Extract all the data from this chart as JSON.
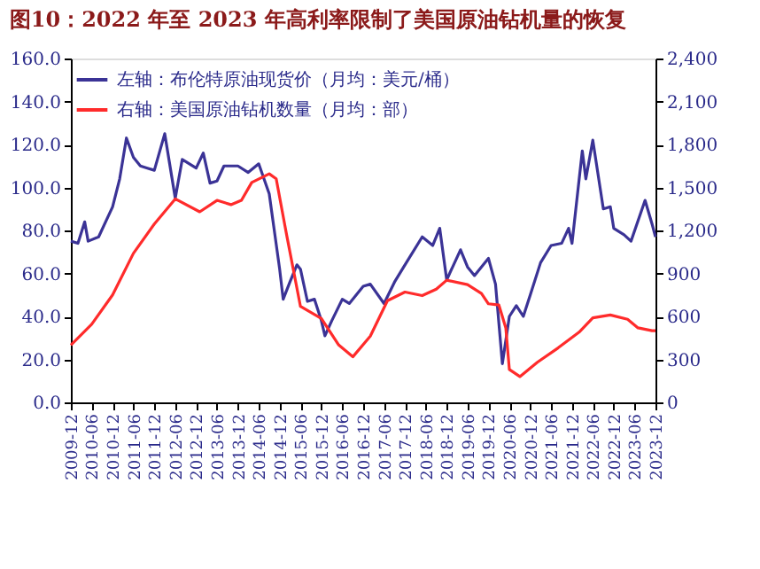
{
  "chart_data": {
    "type": "line",
    "title": "图10：2022 年至 2023 年高利率限制了美国原油钻机量的恢复",
    "series": [
      {
        "name": "左轴：布伦特原油现货价（月均：美元/桶）",
        "color": "#3b3396",
        "axis": "y",
        "x": [
          "2009-12",
          "2010-02",
          "2010-04",
          "2010-05",
          "2010-08",
          "2010-12",
          "2011-02",
          "2011-04",
          "2011-06",
          "2011-08",
          "2011-10",
          "2011-12",
          "2012-03",
          "2012-06",
          "2012-08",
          "2012-12",
          "2013-02",
          "2013-04",
          "2013-06",
          "2013-08",
          "2013-12",
          "2014-03",
          "2014-06",
          "2014-09",
          "2014-12",
          "2015-01",
          "2015-03",
          "2015-05",
          "2015-06",
          "2015-08",
          "2015-10",
          "2015-12",
          "2016-01",
          "2016-03",
          "2016-06",
          "2016-08",
          "2016-12",
          "2017-02",
          "2017-06",
          "2017-09",
          "2017-12",
          "2018-05",
          "2018-08",
          "2018-10",
          "2018-12",
          "2019-04",
          "2019-06",
          "2019-08",
          "2019-12",
          "2020-02",
          "2020-04",
          "2020-06",
          "2020-08",
          "2020-10",
          "2020-12",
          "2021-03",
          "2021-06",
          "2021-09",
          "2021-11",
          "2021-12",
          "2022-03",
          "2022-04",
          "2022-06",
          "2022-09",
          "2022-11",
          "2022-12",
          "2023-03",
          "2023-05",
          "2023-09",
          "2023-11",
          "2023-12"
        ],
        "values": [
          75,
          74,
          84,
          75,
          77,
          91,
          104,
          123,
          114,
          110,
          109,
          108,
          125,
          95,
          113,
          109,
          116,
          102,
          103,
          110,
          110,
          107,
          111,
          97,
          62,
          48,
          56,
          64,
          62,
          47,
          48,
          38,
          31,
          38,
          48,
          46,
          54,
          55,
          46,
          56,
          64,
          77,
          73,
          81,
          57,
          71,
          63,
          59,
          67,
          55,
          18,
          40,
          45,
          40,
          50,
          65,
          73,
          74,
          81,
          74,
          117,
          104,
          122,
          90,
          91,
          81,
          78,
          75,
          94,
          83,
          77
        ]
      },
      {
        "name": "右轴：美国原油钻机数量（月均：部）",
        "color": "#ff2b2b",
        "axis": "y2",
        "x": [
          "2009-12",
          "2010-06",
          "2010-12",
          "2011-06",
          "2011-12",
          "2012-06",
          "2013-01",
          "2013-06",
          "2013-10",
          "2014-01",
          "2014-04",
          "2014-09",
          "2014-11",
          "2015-02",
          "2015-06",
          "2015-12",
          "2016-05",
          "2016-09",
          "2017-02",
          "2017-07",
          "2017-12",
          "2018-05",
          "2018-09",
          "2018-12",
          "2019-06",
          "2019-10",
          "2019-12",
          "2020-03",
          "2020-05",
          "2020-06",
          "2020-09",
          "2021-02",
          "2021-08",
          "2022-02",
          "2022-06",
          "2022-11",
          "2023-04",
          "2023-07",
          "2023-11",
          "2023-12"
        ],
        "values": [
          400,
          545,
          750,
          1040,
          1245,
          1420,
          1330,
          1410,
          1380,
          1410,
          1535,
          1595,
          1560,
          1165,
          670,
          585,
          400,
          318,
          462,
          710,
          770,
          745,
          790,
          853,
          822,
          760,
          688,
          680,
          520,
          230,
          180,
          280,
          380,
          490,
          590,
          610,
          580,
          520,
          500,
          500
        ]
      }
    ],
    "xlim": [
      "2009-12",
      "2023-12"
    ],
    "xticks": [
      "2009-12",
      "2010-06",
      "2010-12",
      "2011-06",
      "2011-12",
      "2012-06",
      "2012-12",
      "2013-06",
      "2013-12",
      "2014-06",
      "2014-12",
      "2015-06",
      "2015-12",
      "2016-06",
      "2016-12",
      "2017-06",
      "2017-12",
      "2018-06",
      "2018-12",
      "2019-06",
      "2019-12",
      "2020-06",
      "2020-12",
      "2021-06",
      "2021-12",
      "2022-06",
      "2022-12",
      "2023-06",
      "2023-12"
    ],
    "ylim": [
      0,
      160
    ],
    "yticks": [
      {
        "value": 0,
        "label": "0.0"
      },
      {
        "value": 20,
        "label": "20.0"
      },
      {
        "value": 40,
        "label": "40.0"
      },
      {
        "value": 60,
        "label": "60.0"
      },
      {
        "value": 80,
        "label": "80.0"
      },
      {
        "value": 100,
        "label": "100.0"
      },
      {
        "value": 120,
        "label": "120.0"
      },
      {
        "value": 140,
        "label": "140.0"
      },
      {
        "value": 160,
        "label": "160.0"
      }
    ],
    "y2lim": [
      0,
      2400
    ],
    "y2ticks": [
      {
        "value": 0,
        "label": "0"
      },
      {
        "value": 300,
        "label": "300"
      },
      {
        "value": 600,
        "label": "600"
      },
      {
        "value": 900,
        "label": "900"
      },
      {
        "value": 1200,
        "label": "1,200"
      },
      {
        "value": 1500,
        "label": "1,500"
      },
      {
        "value": 1800,
        "label": "1,800"
      },
      {
        "value": 2100,
        "label": "2,100"
      },
      {
        "value": 2400,
        "label": "2,400"
      }
    ],
    "legend": "top left",
    "grid": false,
    "line_style": "solid",
    "marker": "none"
  }
}
